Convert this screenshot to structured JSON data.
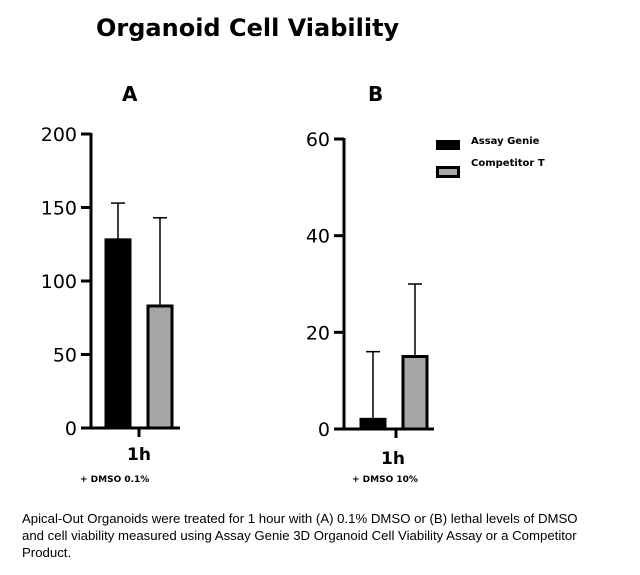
{
  "title": "Organoid Cell Viability",
  "caption": "Apical-Out Organoids were treated for 1 hour with (A) 0.1% DMSO or (B) lethal levels of DMSO and cell viability measured using Assay Genie 3D Organoid Cell Viability Assay or a Competitor Product.",
  "colors": {
    "assay_genie": "#000000",
    "competitor": "#a6a6a6"
  },
  "chart_data": [
    {
      "type": "bar",
      "panel": "A",
      "categories": [
        "1h"
      ],
      "condition_label": "+ DMSO 0.1%",
      "ylim": [
        0,
        200
      ],
      "yticks": [
        "0",
        "50",
        "100",
        "150",
        "200"
      ],
      "series": [
        {
          "name": "Assay Genie",
          "values": [
            128
          ],
          "error": [
            25
          ]
        },
        {
          "name": "Competitor T",
          "values": [
            83
          ],
          "error": [
            60
          ]
        }
      ]
    },
    {
      "type": "bar",
      "panel": "B",
      "categories": [
        "1h"
      ],
      "condition_label": "+ DMSO 10%",
      "ylim": [
        0,
        60
      ],
      "yticks": [
        "0",
        "20",
        "40",
        "60"
      ],
      "legend": {
        "position": "top-right",
        "entries": [
          "Assay Genie",
          "Competitor T"
        ]
      },
      "series": [
        {
          "name": "Assay Genie",
          "values": [
            2
          ],
          "error": [
            14
          ]
        },
        {
          "name": "Competitor T",
          "values": [
            15
          ],
          "error": [
            15
          ]
        }
      ]
    }
  ]
}
